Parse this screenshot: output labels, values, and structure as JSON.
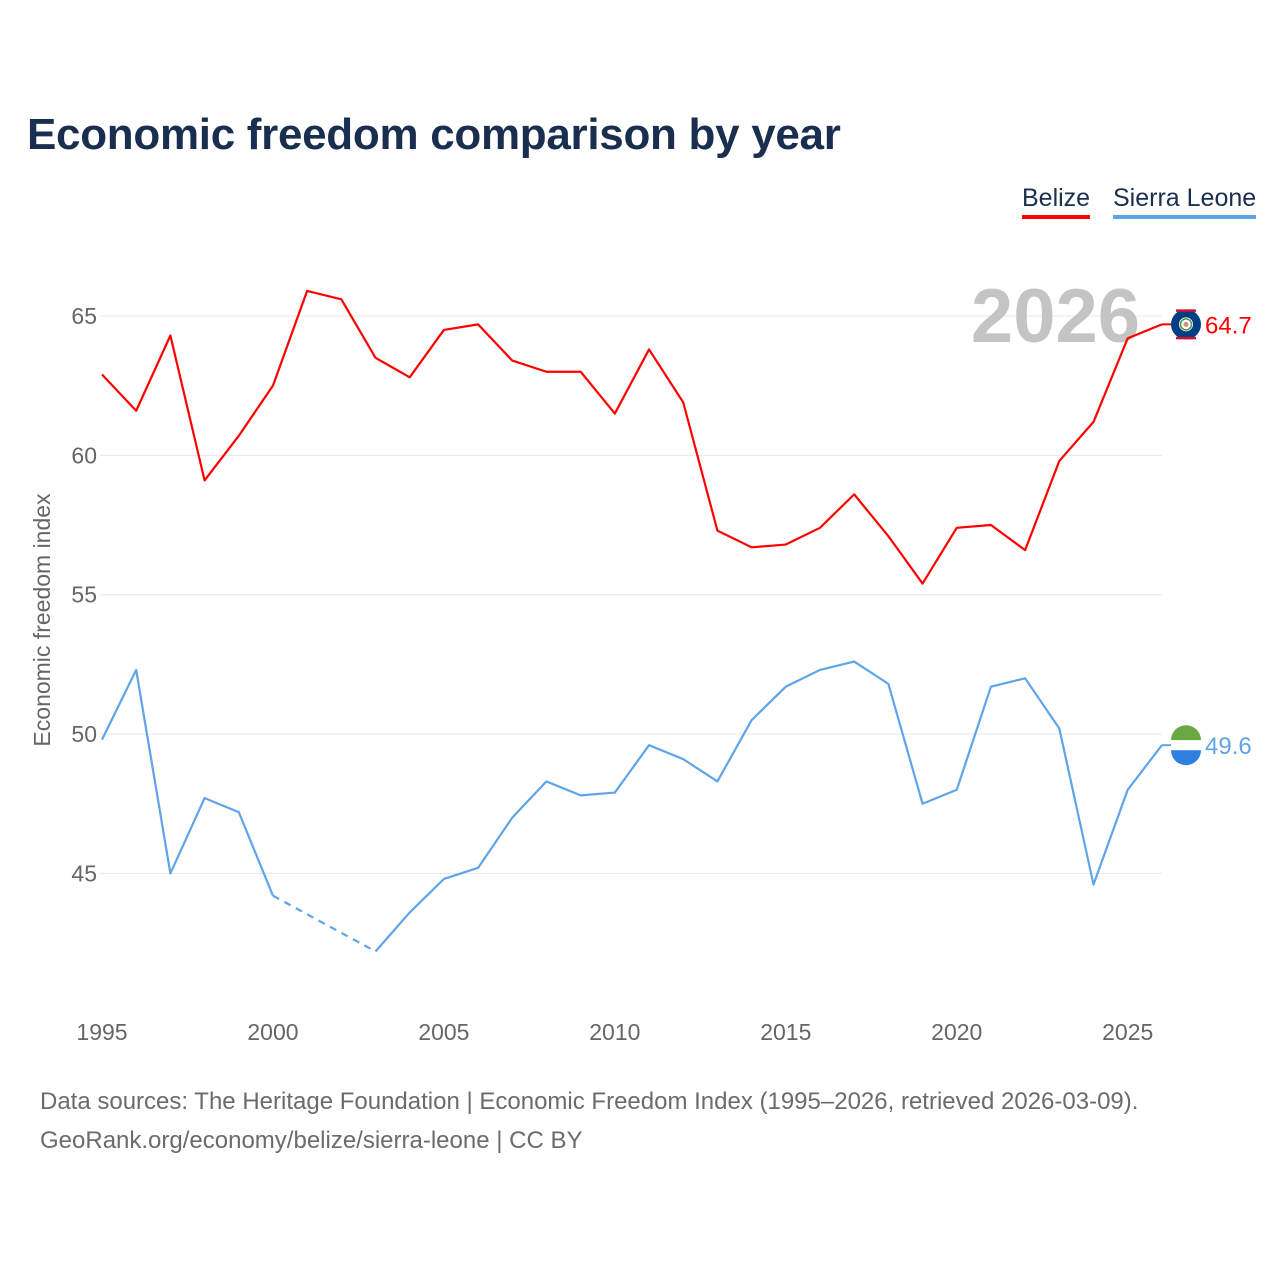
{
  "title": "Economic freedom comparison by year",
  "legend": [
    "Belize",
    "Sierra Leone"
  ],
  "sources": {
    "line1": "Data sources: The Heritage Foundation | Economic Freedom Index (1995–2026, retrieved 2026-03-09).",
    "line2": "GeoRank.org/economy/belize/sierra-leone | CC BY"
  },
  "chart_data": {
    "type": "line",
    "title": "Economic freedom comparison by year",
    "xlabel": "",
    "ylabel": "Economic freedom index",
    "current_year_label": "2026",
    "x": [
      1995,
      1996,
      1997,
      1998,
      1999,
      2000,
      2001,
      2002,
      2003,
      2004,
      2005,
      2006,
      2007,
      2008,
      2009,
      2010,
      2011,
      2012,
      2013,
      2014,
      2015,
      2016,
      2017,
      2018,
      2019,
      2020,
      2021,
      2022,
      2023,
      2024,
      2025,
      2026
    ],
    "xticks": [
      1995,
      2000,
      2005,
      2010,
      2015,
      2020,
      2025
    ],
    "yticks": [
      45,
      50,
      55,
      60,
      65
    ],
    "ylim": [
      40.5,
      67.5
    ],
    "xlim": [
      1995,
      2026
    ],
    "grid": true,
    "legend_position": "top-right",
    "series": [
      {
        "name": "Belize",
        "color": "#ff0000",
        "end_label": "64.7",
        "values": [
          62.9,
          61.6,
          64.3,
          59.1,
          60.7,
          62.5,
          65.9,
          65.6,
          63.5,
          62.8,
          64.5,
          64.7,
          63.4,
          63.0,
          63.0,
          61.5,
          63.8,
          61.9,
          57.3,
          56.7,
          56.8,
          57.4,
          58.6,
          57.1,
          55.4,
          57.4,
          57.5,
          56.6,
          59.8,
          61.2,
          64.2,
          64.7
        ]
      },
      {
        "name": "Sierra Leone",
        "color": "#5fa4e8",
        "end_label": "49.6",
        "values": [
          49.8,
          52.3,
          45.0,
          47.7,
          47.2,
          44.2,
          null,
          null,
          42.2,
          43.6,
          44.8,
          45.2,
          47.0,
          48.3,
          47.8,
          47.9,
          49.6,
          49.1,
          48.3,
          50.5,
          51.7,
          52.3,
          52.6,
          51.8,
          47.5,
          48.0,
          51.7,
          52.0,
          50.2,
          44.6,
          48.0,
          49.6
        ]
      }
    ]
  }
}
